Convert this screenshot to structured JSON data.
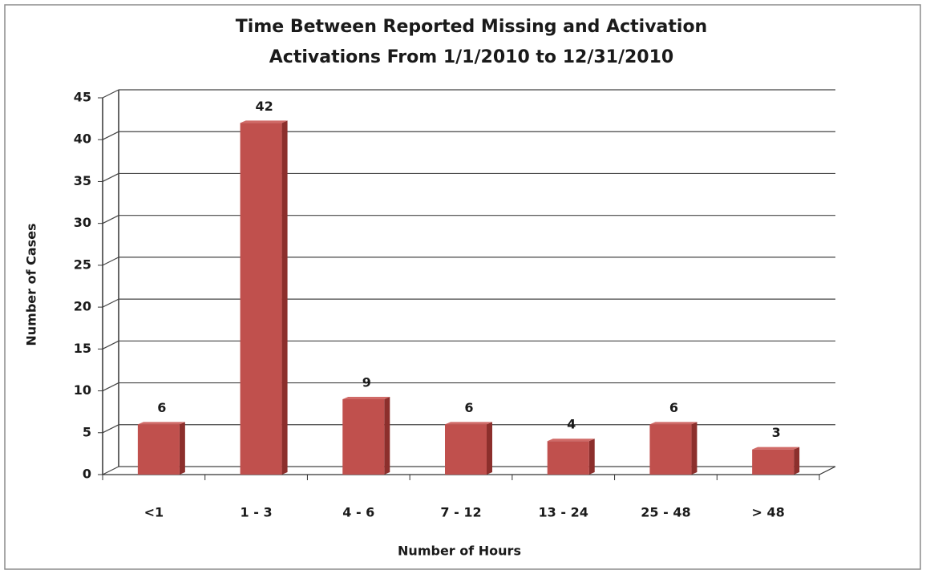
{
  "chart_data": {
    "type": "bar",
    "title": "Time Between Reported Missing and Activation",
    "subtitle": "Activations From 1/1/2010 to 12/31/2010",
    "x_label": "Number of Hours",
    "y_label": "Number of Cases",
    "categories": [
      "<1",
      "1 - 3",
      "4 - 6",
      "7 - 12",
      "13 - 24",
      "25 - 48",
      "> 48"
    ],
    "values": [
      6,
      42,
      9,
      6,
      4,
      6,
      3
    ],
    "color": "#c0504d",
    "ylim": [
      0,
      45
    ],
    "yticks": [
      0,
      5,
      10,
      15,
      20,
      25,
      30,
      35,
      40,
      45
    ],
    "grid": true
  }
}
